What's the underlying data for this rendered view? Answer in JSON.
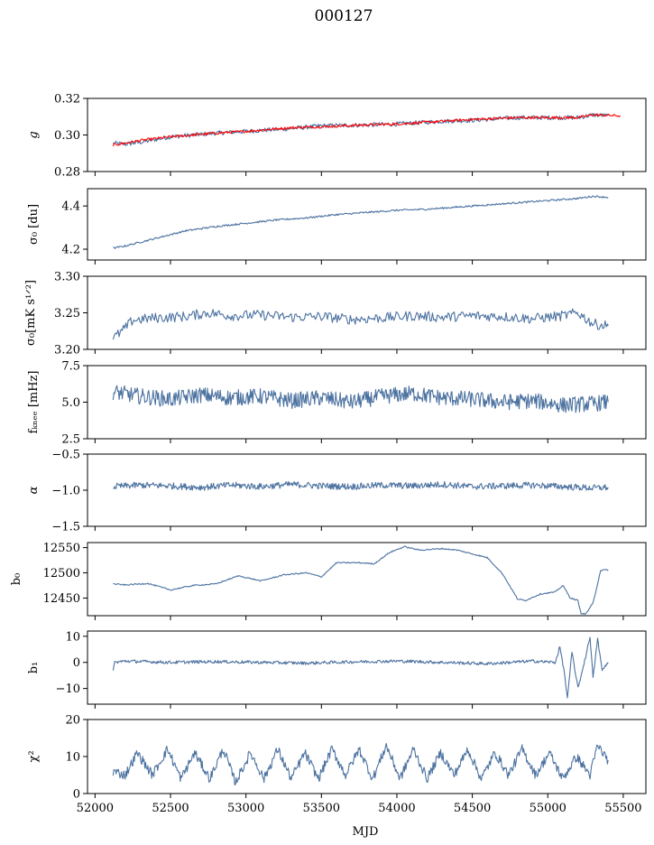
{
  "figure": {
    "title": "000127",
    "xlabel": "MJD",
    "xlim": [
      51950,
      55650
    ],
    "xticks": [
      52000,
      52500,
      53000,
      53500,
      54000,
      54500,
      55000,
      55500
    ],
    "colors": {
      "series": "#4c72a0",
      "red_overlay": "#ff0000"
    }
  },
  "chart_data": [
    {
      "type": "line",
      "ylabel": "g",
      "ylim": [
        0.28,
        0.32
      ],
      "yticks": [
        "0.28",
        "0.30",
        "0.32"
      ],
      "series": [
        {
          "color": "#4c72a0",
          "x": [
            52120,
            52200,
            52300,
            52500,
            52800,
            53000,
            53300,
            53500,
            53800,
            54000,
            54300,
            54500,
            54800,
            55000,
            55200,
            55300,
            55400
          ],
          "y": [
            0.2955,
            0.295,
            0.296,
            0.299,
            0.301,
            0.302,
            0.3035,
            0.305,
            0.3055,
            0.306,
            0.3075,
            0.308,
            0.3095,
            0.3095,
            0.3095,
            0.311,
            0.3105
          ]
        },
        {
          "color": "#ff0000",
          "x": [
            52120,
            52200,
            52300,
            52500,
            52800,
            53000,
            53300,
            53500,
            53800,
            54000,
            54300,
            54500,
            54800,
            55000,
            55200,
            55300,
            55480
          ],
          "y": [
            0.2945,
            0.2955,
            0.297,
            0.299,
            0.301,
            0.302,
            0.304,
            0.3045,
            0.3055,
            0.306,
            0.3075,
            0.3085,
            0.3095,
            0.3095,
            0.3095,
            0.311,
            0.3105
          ]
        }
      ]
    },
    {
      "type": "line",
      "ylabel": "σ0 [du]",
      "ylim": [
        4.15,
        4.48
      ],
      "yticks": [
        "4.2",
        "4.4"
      ],
      "series": [
        {
          "color": "#4c72a0",
          "x": [
            52120,
            52200,
            52400,
            52600,
            52800,
            53000,
            53200,
            53400,
            53600,
            53800,
            54000,
            54200,
            54400,
            54600,
            54800,
            55000,
            55200,
            55300,
            55400
          ],
          "y": [
            4.205,
            4.215,
            4.25,
            4.285,
            4.305,
            4.32,
            4.335,
            4.345,
            4.36,
            4.37,
            4.38,
            4.385,
            4.395,
            4.405,
            4.415,
            4.425,
            4.435,
            4.445,
            4.44
          ]
        }
      ]
    },
    {
      "type": "line",
      "ylabel": "σ0[mK s^1/2]",
      "ylim": [
        3.2,
        3.3
      ],
      "yticks": [
        "3.20",
        "3.25",
        "3.30"
      ],
      "series": [
        {
          "color": "#4c72a0",
          "x": [
            52120,
            52180,
            52250,
            52400,
            52600,
            52750,
            52900,
            53100,
            53300,
            53500,
            53700,
            53900,
            54100,
            54300,
            54500,
            54700,
            54900,
            55100,
            55200,
            55300,
            55400
          ],
          "y": [
            3.215,
            3.225,
            3.24,
            3.243,
            3.245,
            3.25,
            3.246,
            3.247,
            3.244,
            3.245,
            3.241,
            3.243,
            3.246,
            3.244,
            3.246,
            3.245,
            3.242,
            3.246,
            3.25,
            3.235,
            3.232
          ]
        }
      ]
    },
    {
      "type": "line",
      "ylabel": "f_knee [mHz]",
      "ylim": [
        2.5,
        7.5
      ],
      "yticks": [
        "2.5",
        "5.0",
        "7.5"
      ],
      "series": [
        {
          "color": "#4c72a0",
          "x": [
            52120,
            52300,
            52500,
            52700,
            52900,
            53100,
            53300,
            53500,
            53700,
            53900,
            54100,
            54300,
            54500,
            54700,
            54900,
            55100,
            55300,
            55400
          ],
          "y": [
            5.7,
            5.4,
            5.2,
            5.5,
            5.3,
            5.4,
            5.1,
            5.3,
            5.0,
            5.4,
            5.6,
            5.3,
            5.2,
            5.0,
            5.1,
            4.8,
            4.9,
            5.0
          ]
        }
      ]
    },
    {
      "type": "line",
      "ylabel": "α",
      "ylim": [
        -1.5,
        -0.5
      ],
      "yticks": [
        "−1.5",
        "−1.0",
        "−0.5"
      ],
      "series": [
        {
          "color": "#4c72a0",
          "x": [
            52120,
            52300,
            52500,
            52700,
            52900,
            53100,
            53300,
            53500,
            53700,
            53900,
            54100,
            54300,
            54500,
            54700,
            54900,
            55100,
            55300,
            55400
          ],
          "y": [
            -0.95,
            -0.93,
            -0.94,
            -0.96,
            -0.93,
            -0.95,
            -0.92,
            -0.94,
            -0.95,
            -0.93,
            -0.94,
            -0.92,
            -0.95,
            -0.94,
            -0.93,
            -0.95,
            -0.97,
            -0.96
          ]
        }
      ]
    },
    {
      "type": "line",
      "ylabel": "b0",
      "ylim": [
        12415,
        12560
      ],
      "yticks": [
        "12450",
        "12500",
        "12550"
      ],
      "series": [
        {
          "color": "#4c72a0",
          "x": [
            52120,
            52200,
            52350,
            52500,
            52650,
            52800,
            52950,
            53100,
            53250,
            53400,
            53500,
            53600,
            53750,
            53850,
            53950,
            54050,
            54150,
            54300,
            54400,
            54600,
            54700,
            54800,
            54850,
            54950,
            55050,
            55100,
            55150,
            55200,
            55220,
            55250,
            55300,
            55350,
            55400
          ],
          "y": [
            12478,
            12476,
            12479,
            12466,
            12475,
            12478,
            12494,
            12484,
            12496,
            12500,
            12492,
            12520,
            12520,
            12518,
            12540,
            12552,
            12545,
            12548,
            12545,
            12530,
            12498,
            12448,
            12445,
            12458,
            12462,
            12475,
            12450,
            12445,
            12420,
            12418,
            12440,
            12505,
            12506
          ]
        }
      ]
    },
    {
      "type": "line",
      "ylabel": "b1",
      "ylim": [
        -16,
        12
      ],
      "yticks": [
        "−10",
        "0",
        "10"
      ],
      "series": [
        {
          "color": "#4c72a0",
          "x": [
            52120,
            52130,
            52200,
            52500,
            52800,
            53100,
            53400,
            53700,
            54000,
            54300,
            54600,
            54900,
            55050,
            55080,
            55110,
            55130,
            55160,
            55200,
            55250,
            55280,
            55300,
            55330,
            55360,
            55400
          ],
          "y": [
            -3,
            0,
            0.5,
            0,
            0.3,
            0,
            -0.3,
            0.2,
            0.5,
            0,
            -0.5,
            0.5,
            0,
            6,
            -4,
            -14,
            4,
            -10,
            2,
            10,
            -6,
            9,
            -3,
            0
          ]
        }
      ]
    },
    {
      "type": "line",
      "ylabel": "χ2",
      "ylim": [
        0,
        20
      ],
      "yticks": [
        "0",
        "10",
        "20"
      ],
      "series": [
        {
          "color": "#4c72a0",
          "x": [
            52120,
            52200,
            52280,
            52380,
            52480,
            52570,
            52660,
            52760,
            52850,
            52930,
            53030,
            53120,
            53210,
            53300,
            53390,
            53480,
            53570,
            53660,
            53750,
            53840,
            53930,
            54020,
            54110,
            54200,
            54290,
            54380,
            54470,
            54560,
            54650,
            54740,
            54830,
            54920,
            55010,
            55100,
            55190,
            55280,
            55330,
            55400
          ],
          "y": [
            6,
            5,
            11,
            5,
            12,
            4,
            11,
            4,
            12,
            3,
            11,
            4,
            12,
            4,
            11,
            4,
            12,
            5,
            12,
            4,
            13,
            4,
            12,
            4,
            11,
            5,
            12,
            4,
            11,
            5,
            12,
            5,
            11,
            4,
            10,
            5,
            13,
            9
          ]
        }
      ]
    }
  ]
}
